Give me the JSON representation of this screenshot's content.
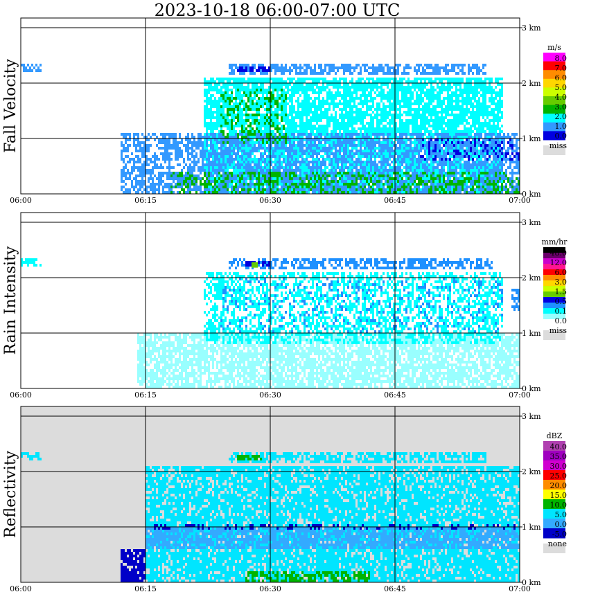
{
  "title": "2023-10-18   06:00-07:00 UTC",
  "chart_data": [
    {
      "type": "heatmap",
      "ylabel": "Fall Velocity",
      "x_ticks": [
        "06:00",
        "06:15",
        "06:30",
        "06:45",
        "07:00"
      ],
      "y_ticks": [
        "0 km",
        "1 km",
        "2 km",
        "3 km"
      ],
      "background": "#ffffff",
      "legend": {
        "unit": "m/s",
        "labels": [
          "8.0",
          "7.0",
          "6.0",
          "5.0",
          "4.0",
          "3.0",
          "2.0",
          "1.0",
          "0.0"
        ],
        "colors": [
          "#ff00ff",
          "#ff0000",
          "#ff8c00",
          "#ffd700",
          "#ccff00",
          "#66cc00",
          "#00b400",
          "#00ffff",
          "#3399ff",
          "#0000e0"
        ],
        "missing_label": "miss",
        "missing_color": "#dcdcdc"
      },
      "layers": [
        {
          "color": "#00ffff",
          "x": [
            22,
            58
          ],
          "y": [
            0,
            2.1
          ],
          "density": 0.8
        },
        {
          "color": "#3399ff",
          "x": [
            12,
            60
          ],
          "y": [
            0,
            1.1
          ],
          "density": 0.6
        },
        {
          "color": "#00b400",
          "x": [
            18,
            60
          ],
          "y": [
            0,
            0.4
          ],
          "density": 0.35
        },
        {
          "color": "#00b400",
          "x": [
            24,
            32
          ],
          "y": [
            0.9,
            1.9
          ],
          "density": 0.3
        },
        {
          "color": "#0000e0",
          "x": [
            48,
            60
          ],
          "y": [
            0.6,
            1.0
          ],
          "density": 0.25
        },
        {
          "color": "#3399ff",
          "x": [
            25,
            56
          ],
          "y": [
            2.15,
            2.35
          ],
          "density": 0.7
        },
        {
          "color": "#0000e0",
          "x": [
            26,
            30
          ],
          "y": [
            2.2,
            2.3
          ],
          "density": 0.7
        },
        {
          "color": "#3399ff",
          "x": [
            0,
            2.5
          ],
          "y": [
            2.2,
            2.35
          ],
          "density": 0.6
        }
      ]
    },
    {
      "type": "heatmap",
      "ylabel": "Rain Intensity",
      "x_ticks": [
        "06:00",
        "06:15",
        "06:30",
        "06:45",
        "07:00"
      ],
      "y_ticks": [
        "0 km",
        "1 km",
        "2 km",
        "3 km"
      ],
      "background": "#ffffff",
      "legend": {
        "unit": "mm/hr",
        "labels": [
          "48.0",
          "12.0",
          "6.0",
          "3.0",
          "1.5",
          "0.5",
          "0.1",
          "0.0"
        ],
        "colors": [
          "#000000",
          "#6a006a",
          "#cc00cc",
          "#ff1493",
          "#ff0000",
          "#ff8c00",
          "#ffd700",
          "#ccff00",
          "#66cc00",
          "#0000e0",
          "#1e90ff",
          "#00ffff",
          "#99ffff",
          "#ffffff"
        ],
        "missing_label": "miss",
        "missing_color": "#dcdcdc"
      },
      "layers": [
        {
          "color": "#99ffff",
          "x": [
            14,
            60
          ],
          "y": [
            0,
            1.0
          ],
          "density": 0.75
        },
        {
          "color": "#00ffff",
          "x": [
            22,
            58
          ],
          "y": [
            0.8,
            2.1
          ],
          "density": 0.5
        },
        {
          "color": "#1e90ff",
          "x": [
            24,
            58
          ],
          "y": [
            1.0,
            2.0
          ],
          "density": 0.12
        },
        {
          "color": "#1e90ff",
          "x": [
            25,
            57
          ],
          "y": [
            2.15,
            2.35
          ],
          "density": 0.6
        },
        {
          "color": "#0000e0",
          "x": [
            27,
            30
          ],
          "y": [
            2.2,
            2.3
          ],
          "density": 0.6
        },
        {
          "color": "#66cc00",
          "x": [
            27.5,
            28.5
          ],
          "y": [
            2.22,
            2.28
          ],
          "density": 0.8
        },
        {
          "color": "#1e90ff",
          "x": [
            59,
            60
          ],
          "y": [
            1.4,
            1.8
          ],
          "density": 0.7
        },
        {
          "color": "#00ffff",
          "x": [
            0,
            2.5
          ],
          "y": [
            2.2,
            2.35
          ],
          "density": 0.6
        }
      ]
    },
    {
      "type": "heatmap",
      "ylabel": "Reflectivity",
      "x_ticks": [
        "06:00",
        "06:15",
        "06:30",
        "06:45",
        "07:00"
      ],
      "y_ticks": [
        "0 km",
        "1 km",
        "2 km",
        "3 km"
      ],
      "background": "#dcdcdc",
      "legend": {
        "unit": "dBZ",
        "labels": [
          "40.0",
          "35.0",
          "30.0",
          "25.0",
          "20.0",
          "15.0",
          "10.0",
          "5.0",
          "0.0",
          "-5.0"
        ],
        "colors": [
          "#b040b0",
          "#a000c0",
          "#d000d0",
          "#ff0000",
          "#ff8c00",
          "#ffff00",
          "#00b400",
          "#00e5ff",
          "#33aaff",
          "#0000c8"
        ],
        "missing_label": "none",
        "missing_color": "#dcdcdc"
      },
      "layers": [
        {
          "color": "#00e5ff",
          "x": [
            15,
            60
          ],
          "y": [
            0,
            2.1
          ],
          "density": 0.8
        },
        {
          "color": "#33aaff",
          "x": [
            15,
            60
          ],
          "y": [
            0.6,
            1.0
          ],
          "density": 0.7
        },
        {
          "color": "#0000c8",
          "x": [
            12,
            15
          ],
          "y": [
            0,
            0.6
          ],
          "density": 0.85
        },
        {
          "color": "#0000c8",
          "x": [
            16,
            60
          ],
          "y": [
            0.95,
            1.05
          ],
          "density": 0.25
        },
        {
          "color": "#00b400",
          "x": [
            27,
            42
          ],
          "y": [
            0,
            0.2
          ],
          "density": 0.6
        },
        {
          "color": "#00e5ff",
          "x": [
            25,
            56
          ],
          "y": [
            2.15,
            2.35
          ],
          "density": 0.7
        },
        {
          "color": "#00b400",
          "x": [
            26,
            29
          ],
          "y": [
            2.2,
            2.3
          ],
          "density": 0.6
        },
        {
          "color": "#00e5ff",
          "x": [
            0,
            2.5
          ],
          "y": [
            2.2,
            2.35
          ],
          "density": 0.6
        }
      ]
    }
  ]
}
